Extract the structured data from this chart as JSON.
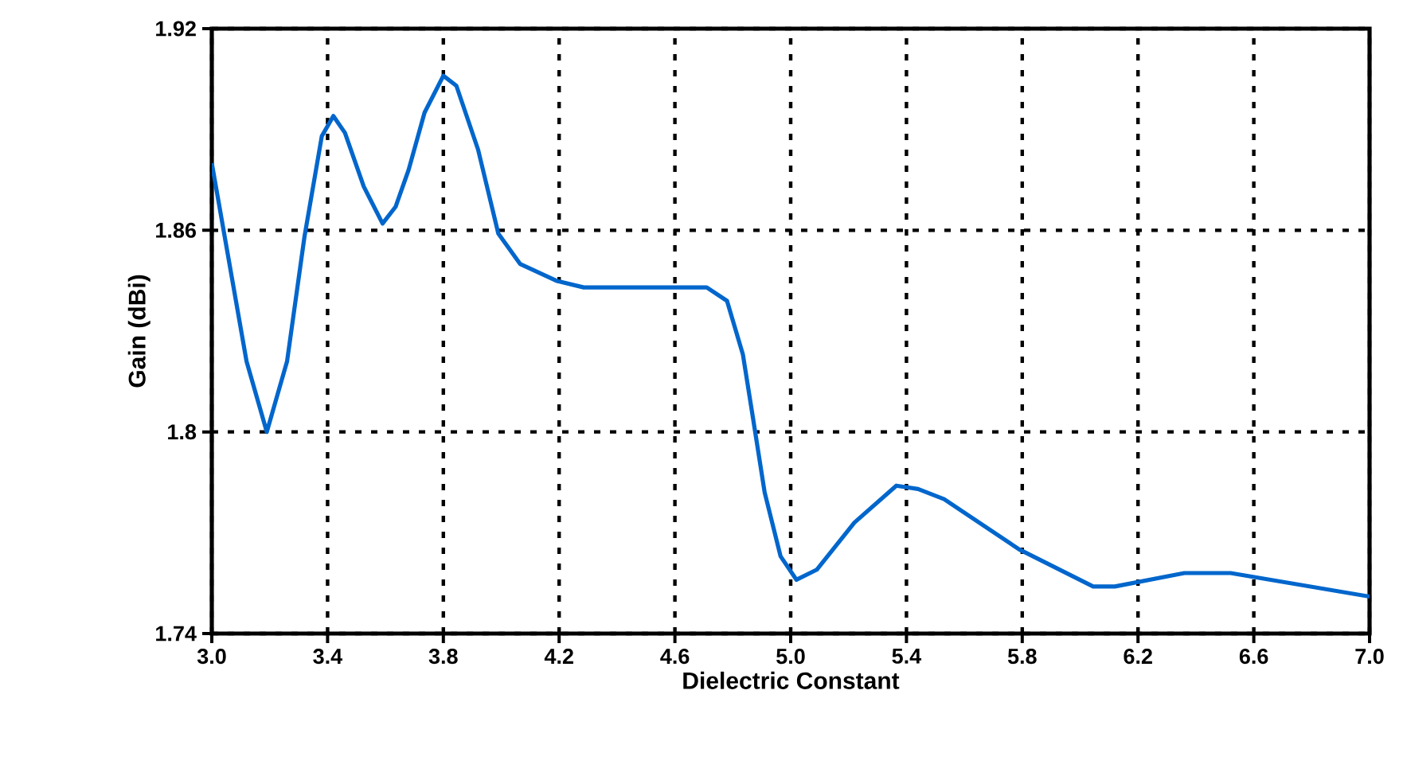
{
  "chart_data": {
    "type": "line",
    "xlabel": "Dielectric Constant",
    "ylabel": "Gain (dBi)",
    "xlim": [
      3.0,
      7.0
    ],
    "ylim": [
      1.74,
      1.92
    ],
    "xticks": [
      {
        "value": 3.0,
        "label": "3.0"
      },
      3.4,
      3.8,
      4.2,
      4.6,
      {
        "value": 5.0,
        "label": "5.0"
      },
      5.4,
      5.8,
      6.2,
      6.6,
      {
        "value": 7.0,
        "label": "7.0"
      }
    ],
    "yticks": [
      1.74,
      {
        "value": 1.8,
        "label": "1.8"
      },
      1.86,
      1.92
    ],
    "grid": true,
    "series": [
      {
        "color": "#0066cc",
        "x": [
          3.0,
          3.12,
          3.19,
          3.26,
          3.32,
          3.38,
          3.42,
          3.46,
          3.525,
          3.59,
          3.635,
          3.68,
          3.735,
          3.8,
          3.845,
          3.92,
          3.99,
          4.065,
          4.19,
          4.285,
          4.56,
          4.71,
          4.78,
          4.835,
          4.87,
          4.91,
          4.965,
          5.02,
          5.09,
          5.22,
          5.365,
          5.44,
          5.53,
          5.79,
          6.045,
          6.12,
          6.36,
          6.52,
          7.0
        ],
        "values": [
          1.88,
          1.821,
          1.8,
          1.821,
          1.858,
          1.888,
          1.894,
          1.889,
          1.873,
          1.862,
          1.867,
          1.878,
          1.895,
          1.906,
          1.903,
          1.884,
          1.859,
          1.85,
          1.845,
          1.843,
          1.843,
          1.843,
          1.839,
          1.823,
          1.804,
          1.782,
          1.763,
          1.756,
          1.759,
          1.773,
          1.784,
          1.783,
          1.78,
          1.765,
          1.754,
          1.754,
          1.758,
          1.758,
          1.751
        ]
      }
    ]
  }
}
